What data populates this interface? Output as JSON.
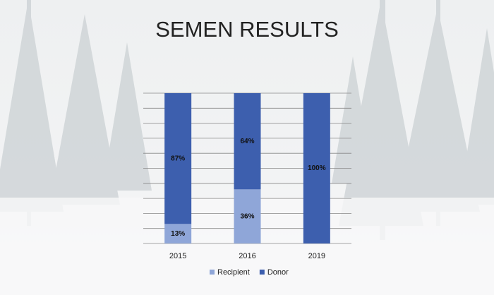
{
  "chart_data": {
    "type": "stacked_bar",
    "title": "SEMEN RESULTS",
    "categories": [
      "2015",
      "2016",
      "2019"
    ],
    "series": [
      {
        "name": "Recipient",
        "color": "#8fa6d8",
        "values": [
          13,
          36,
          0
        ],
        "value_labels": [
          "13%",
          "36%",
          null
        ]
      },
      {
        "name": "Donor",
        "color": "#3d5fae",
        "values": [
          87,
          64,
          100
        ],
        "value_labels": [
          "87%",
          "64%",
          "100%"
        ]
      }
    ],
    "ylim": [
      0,
      100
    ],
    "yticks": [
      0,
      10,
      20,
      30,
      40,
      50,
      60,
      70,
      80,
      90,
      100
    ],
    "grid": true,
    "legend": "bottom"
  }
}
